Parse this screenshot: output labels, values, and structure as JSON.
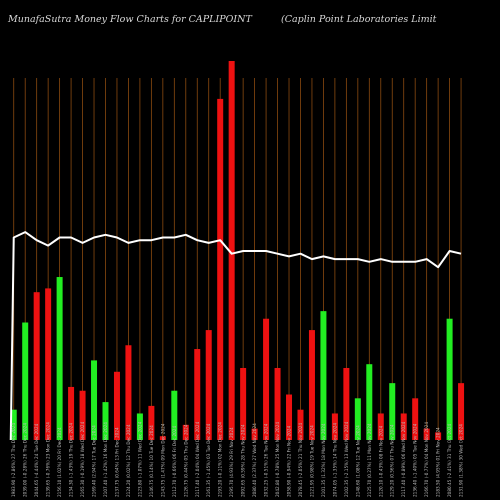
{
  "header": {
    "left": "MunafaSutra  Money Flow  Charts for CAPLIPOINT",
    "right": "(Caplin  Point Laboratories Limit"
  },
  "colors": {
    "background": "#000000",
    "up": "#22ee22",
    "down": "#ee1111",
    "grid": "#8a4a10",
    "line": "#ffffff"
  },
  "chart_data": {
    "type": "bar",
    "grid": true,
    "bar_ylim": [
      0,
      100
    ],
    "line_ylim": [
      0,
      100
    ],
    "categories": [
      "…",
      "…",
      "…",
      "…",
      "…",
      "…",
      "…",
      "…",
      "…",
      "…",
      "…",
      "…",
      "…",
      "…",
      "…",
      "…",
      "…",
      "…",
      "…",
      "…",
      "…",
      "…",
      "…",
      "…",
      "…",
      "…",
      "…",
      "…",
      "…",
      "…",
      "…",
      "…",
      "…",
      "…",
      "…",
      "…",
      "…",
      "…",
      "…",
      "…"
    ],
    "x_tick_labels": [
      "1983.90 (-2.86%) 27 Thu Dec 2024",
      "2039.00 (-0.28%) 26 Thu Dec 2024",
      "2044.65 (-4.44%) 24 Tue Dec 2024",
      "2139.65 (-0.76%) 23 Mon Dec 2024",
      "2156.10 (1.02%) 20 Fri Dec 2024",
      "2134.30 (-1.43%) 19 Thu Dec 2024",
      "2165.30 (-0.19%) 18 Wed Dec 2024",
      "2169.40 (2.94%) 17 Tue Dec 2024",
      "2107.40 (-1.42%) 16 Mon Dec 2024",
      "2137.75 (0.64%) 13 Fri Dec 2024",
      "2124.20 (0.02%) 12 Thu Dec 2024",
      "2123.80 (-1.07%) 11 Wed Dec 2024",
      "2146.75 (0.14%) 10 Tue Dec 2024",
      "2143.75 (1.47%) 09 Mon Dec 2024",
      "2112.70 (-0.66%) 06 Fri Dec 2024",
      "2126.75 (0.44%) 05 Thu Dec 2024",
      "2117.40 (-2.04%) 04 Wed Dec 2024",
      "2161.35 (-1.45%) 03 Tue Dec 2024",
      "2193.20 (-0.11%) 02 Mon Dec 2024",
      "2195.70 (4.93%) 29 Fri Nov 2024",
      "2092.65 (0.59%) 28 Thu Nov 2024",
      "2080.40 (2.37%) 27 Wed Nov 2024",
      "2032.25 (-0.51%) 26 Tue Nov 2024",
      "2042.80 (-0.78%) 25 Mon Nov 2024",
      "2058.90 (-0.94%) 22 Fri Nov 2024",
      "2078.45 (-2.05%) 21 Thu Nov 2024",
      "2121.95 (0.98%) 19 Tue Nov 2024",
      "2101.35 (1.32%) 18 Mon Nov 2024",
      "2074.05 (-1.35%) 14 Thu Nov 2024",
      "2102.35 (-2.15%) 13 Wed Nov 2024",
      "2148.60 (1.08%) 12 Tue Nov 2024",
      "2125.70 (0.27%) 11 Mon Nov 2024",
      "2120.10 (-0.43%) 08 Fri Nov 2024",
      "2129.20 (0.56%) 07 Thu Nov 2024",
      "2117.40 (-0.89%) 06 Wed Nov 2024",
      "2136.40 (-1.40%) 05 Tue Nov 2024",
      "2166.70 (-0.77%) 04 Mon Nov 2024",
      "2183.50 (4.95%) 01 Fri Nov 2024",
      "2080.45 (-2.41%) 31 Thu Oct 2024",
      "2131.90 (1.38%) 30 Wed Oct 2024"
    ],
    "series": [
      {
        "type": "bar",
        "values": [
          8,
          31,
          39,
          40,
          43,
          14,
          13,
          21,
          10,
          18,
          25,
          7,
          9,
          1,
          13,
          4,
          24,
          29,
          90,
          100,
          19,
          3,
          32,
          19,
          12,
          8,
          29,
          34,
          7,
          19,
          11,
          20,
          7,
          15,
          7,
          11,
          3,
          2,
          32,
          15
        ],
        "directions": [
          "up",
          "up",
          "down",
          "down",
          "up",
          "down",
          "down",
          "up",
          "up",
          "down",
          "down",
          "up",
          "down",
          "down",
          "up",
          "down",
          "down",
          "down",
          "down",
          "down",
          "down",
          "down",
          "down",
          "down",
          "down",
          "down",
          "down",
          "up",
          "down",
          "down",
          "up",
          "up",
          "down",
          "up",
          "down",
          "down",
          "down",
          "down",
          "up",
          "down"
        ]
      },
      {
        "type": "line",
        "values": [
          75,
          77,
          74,
          72,
          75,
          75,
          73,
          75,
          76,
          75,
          73,
          74,
          74,
          75,
          75,
          76,
          74,
          73,
          74,
          69,
          70,
          70,
          70,
          69,
          68,
          69,
          67,
          68,
          67,
          67,
          67,
          66,
          67,
          66,
          66,
          66,
          67,
          64,
          70,
          69
        ]
      }
    ]
  }
}
